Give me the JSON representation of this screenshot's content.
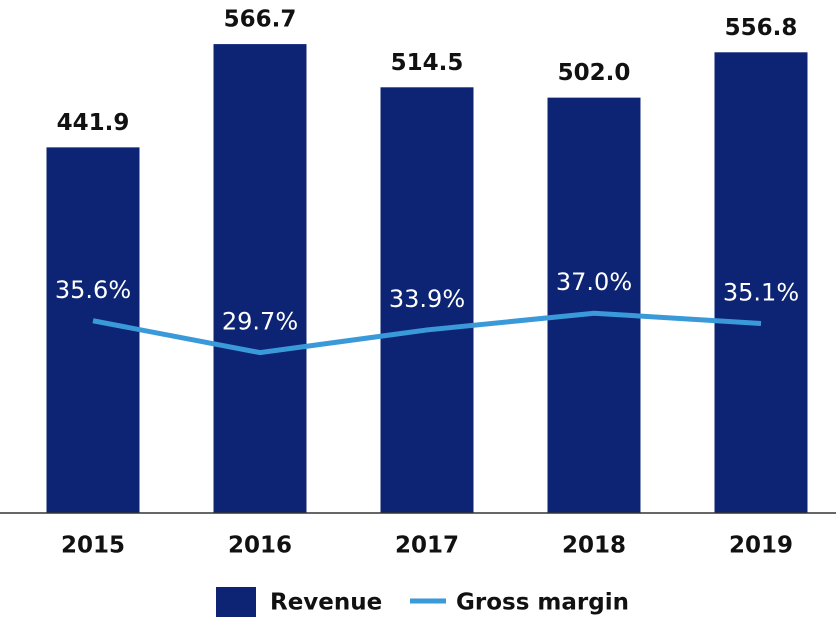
{
  "chart_data": {
    "type": "bar-line",
    "categories": [
      "2015",
      "2016",
      "2017",
      "2018",
      "2019"
    ],
    "series": [
      {
        "name": "Revenue",
        "type": "bar",
        "color": "#0d2475",
        "values": [
          441.9,
          566.7,
          514.5,
          502.0,
          556.8
        ],
        "value_labels": [
          "441.9",
          "566.7",
          "514.5",
          "502.0",
          "556.8"
        ]
      },
      {
        "name": "Gross margin",
        "type": "line",
        "axis": "y2",
        "color": "#3a9ad9",
        "values": [
          35.6,
          29.7,
          33.9,
          37.0,
          35.1
        ],
        "value_labels": [
          "35.6%",
          "29.7%",
          "33.9%",
          "37.0%",
          "35.1%"
        ]
      }
    ],
    "ylim": [
      0,
      620
    ],
    "y2lim": [
      0,
      95
    ],
    "legend": "bottom"
  }
}
